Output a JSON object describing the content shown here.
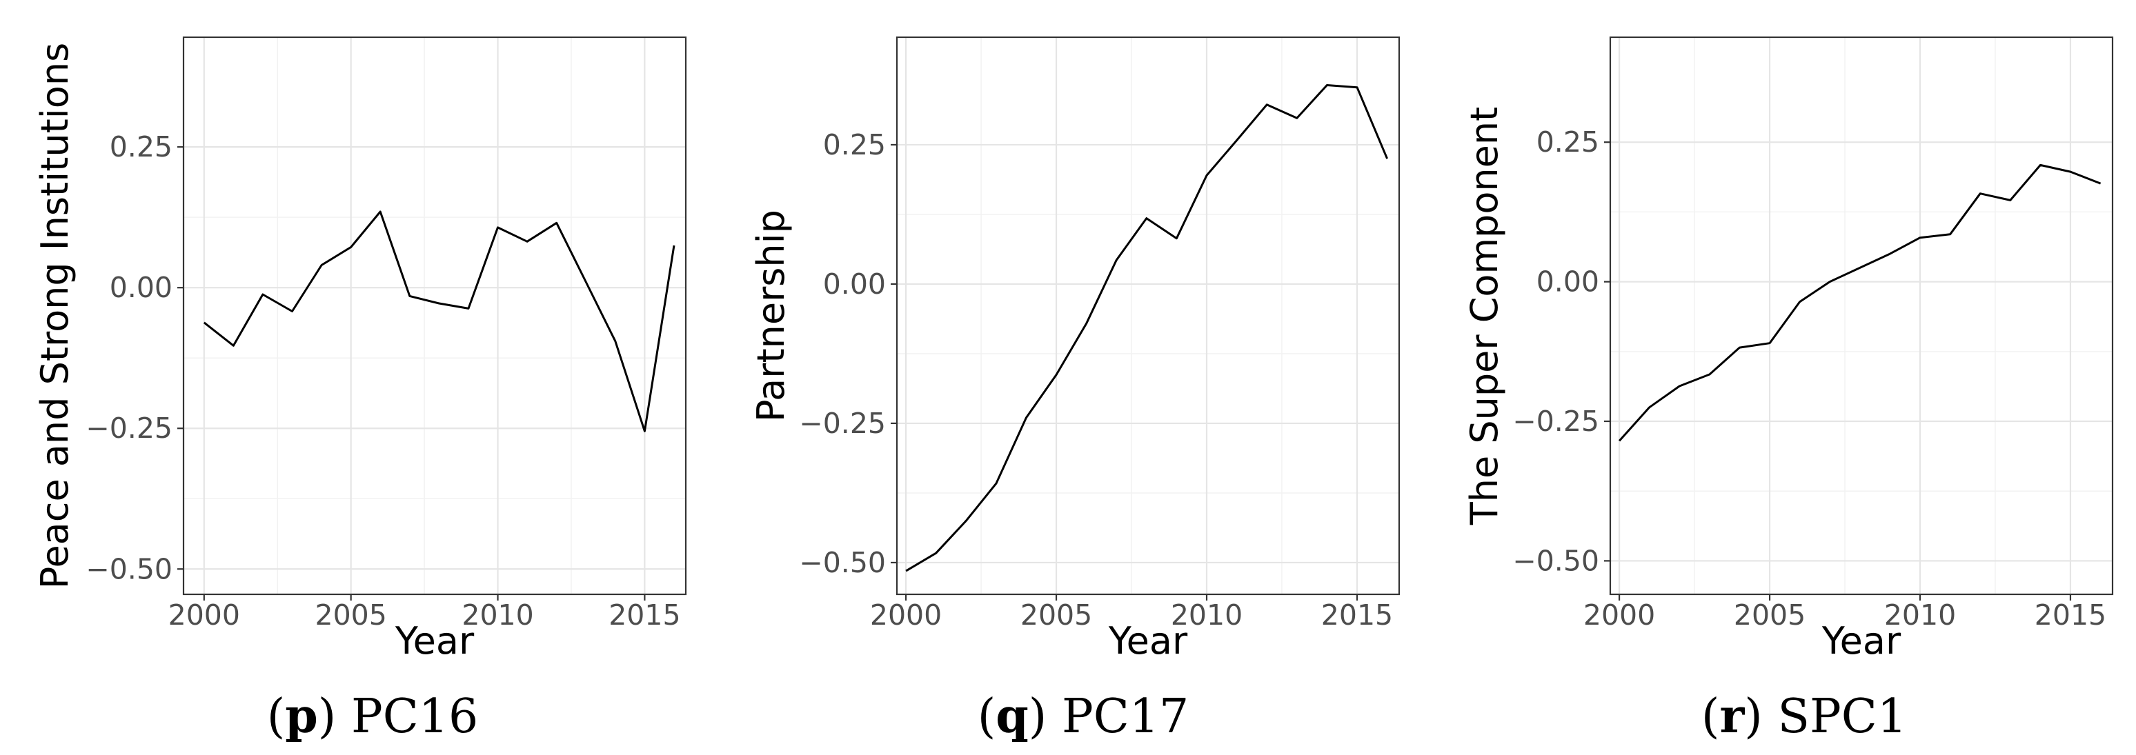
{
  "chart_data": [
    {
      "type": "line",
      "caption": {
        "open": "(",
        "letter": "p",
        "close": ")",
        "text": "PC16"
      },
      "xlabel": "Year",
      "ylabel": "Peace and Strong Institutions",
      "xlim": [
        1999.3,
        2016.4
      ],
      "ylim": [
        -0.545,
        0.445
      ],
      "xticks": [
        2000,
        2005,
        2010,
        2015
      ],
      "xtick_labels": [
        "2000",
        "2005",
        "2010",
        "2015"
      ],
      "yticks": [
        -0.5,
        -0.25,
        0.0,
        0.25
      ],
      "ytick_labels": [
        "−0.50",
        "−0.25",
        "0.00",
        "0.25"
      ],
      "grid": true,
      "line_color": "#000000",
      "series": [
        {
          "x": [
            2000,
            2001,
            2002,
            2003,
            2004,
            2005,
            2006,
            2007,
            2008,
            2009,
            2010,
            2011,
            2012,
            2013,
            2014,
            2015,
            2016
          ],
          "values": [
            -0.062,
            -0.103,
            -0.012,
            -0.042,
            0.04,
            0.072,
            0.135,
            -0.015,
            -0.028,
            -0.037,
            0.107,
            0.082,
            0.115,
            0.01,
            -0.095,
            -0.255,
            0.075
          ]
        }
      ]
    },
    {
      "type": "line",
      "caption": {
        "open": "(",
        "letter": "q",
        "close": ")",
        "text": "PC17"
      },
      "xlabel": "Year",
      "ylabel": "Partnership",
      "xlim": [
        1999.7,
        2016.4
      ],
      "ylim": [
        -0.557,
        0.443
      ],
      "xticks": [
        2000,
        2005,
        2010,
        2015
      ],
      "xtick_labels": [
        "2000",
        "2005",
        "2010",
        "2015"
      ],
      "yticks": [
        -0.5,
        -0.25,
        0.0,
        0.25
      ],
      "ytick_labels": [
        "−0.50",
        "−0.25",
        "0.00",
        "0.25"
      ],
      "grid": true,
      "line_color": "#000000",
      "series": [
        {
          "x": [
            2000,
            2001,
            2002,
            2003,
            2004,
            2005,
            2006,
            2007,
            2008,
            2009,
            2010,
            2011,
            2012,
            2013,
            2014,
            2015,
            2016
          ],
          "values": [
            -0.515,
            -0.483,
            -0.425,
            -0.358,
            -0.24,
            -0.163,
            -0.071,
            0.043,
            0.118,
            0.082,
            0.195,
            0.258,
            0.322,
            0.298,
            0.357,
            0.353,
            0.225
          ]
        }
      ]
    },
    {
      "type": "line",
      "caption": {
        "open": "(",
        "letter": "r",
        "close": ")",
        "text": "SPC1"
      },
      "xlabel": "Year",
      "ylabel": "The Super Component",
      "xlim": [
        1999.7,
        2016.4
      ],
      "ylim": [
        -0.56,
        0.438
      ],
      "xticks": [
        2000,
        2005,
        2010,
        2015
      ],
      "xtick_labels": [
        "2000",
        "2005",
        "2010",
        "2015"
      ],
      "yticks": [
        -0.5,
        -0.25,
        0.0,
        0.25
      ],
      "ytick_labels": [
        "−0.50",
        "−0.25",
        "0.00",
        "0.25"
      ],
      "grid": true,
      "line_color": "#000000",
      "series": [
        {
          "x": [
            2000,
            2001,
            2002,
            2003,
            2004,
            2005,
            2006,
            2007,
            2008,
            2009,
            2010,
            2011,
            2012,
            2013,
            2014,
            2015,
            2016
          ],
          "values": [
            -0.285,
            -0.225,
            -0.187,
            -0.166,
            -0.118,
            -0.11,
            -0.036,
            0.0,
            0.025,
            0.05,
            0.079,
            0.085,
            0.158,
            0.146,
            0.209,
            0.197,
            0.176
          ]
        }
      ]
    }
  ]
}
